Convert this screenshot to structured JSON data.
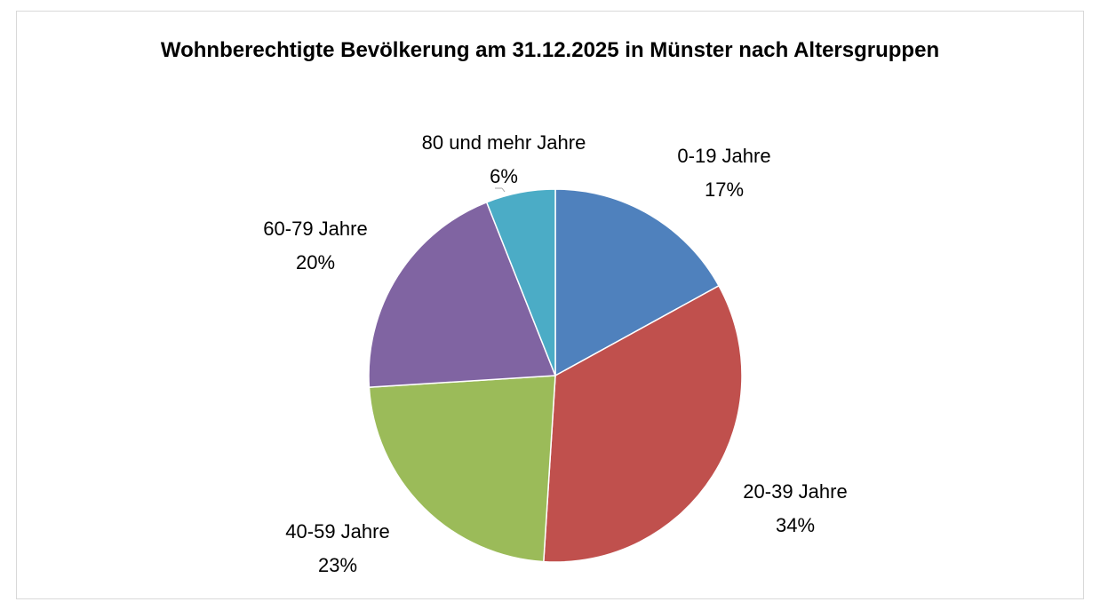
{
  "chart_data": {
    "type": "pie",
    "title": "Wohnberechtigte Bevölkerung am 31.12.2025 in Münster nach Altersgruppen",
    "categories": [
      "0-19 Jahre",
      "20-39 Jahre",
      "40-59 Jahre",
      "60-79 Jahre",
      "80 und mehr Jahre"
    ],
    "values": [
      17,
      34,
      23,
      20,
      6
    ],
    "value_labels": [
      "17%",
      "34%",
      "23%",
      "20%",
      "6%"
    ],
    "colors": [
      "#4f81bd",
      "#c0504d",
      "#9bbb59",
      "#8064a2",
      "#4bacc6"
    ]
  }
}
